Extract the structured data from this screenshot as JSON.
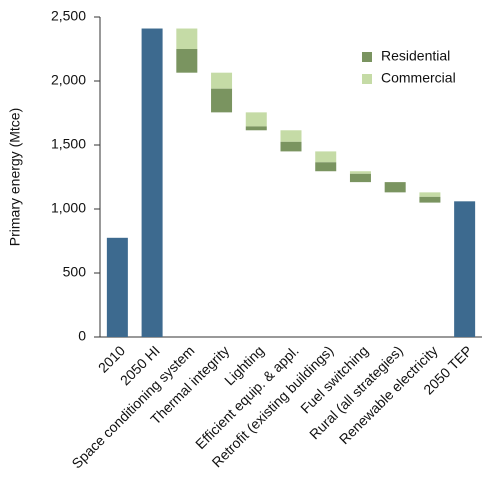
{
  "chart_data": {
    "type": "waterfall",
    "y_label": "Primary energy (Mtce)",
    "categories": [
      "2010",
      "2050 HI",
      "Space conditioning system",
      "Thermal integrity",
      "Lighting",
      "Efficient equip. & appl.",
      "Retrofit (existing buildings)",
      "Fuel switching",
      "Rural (all strategies)",
      "Renewable electricity",
      "2050 TEP"
    ],
    "totals": {
      "color": "#3d6a8f",
      "values": [
        775,
        2410,
        null,
        null,
        null,
        null,
        null,
        null,
        null,
        null,
        1060
      ]
    },
    "series": [
      {
        "name": "Residential",
        "color": "#7a9460",
        "values": [
          null,
          null,
          185,
          185,
          30,
          75,
          70,
          65,
          80,
          45,
          null
        ]
      },
      {
        "name": "Commercial",
        "color": "#c5dba6",
        "values": [
          null,
          null,
          160,
          125,
          110,
          90,
          85,
          20,
          null,
          35,
          null
        ]
      }
    ],
    "ylim": [
      0,
      2500
    ],
    "yticks": [
      0,
      500,
      {
        "value": 1000,
        "label": "1,000"
      },
      {
        "value": 1500,
        "label": "1,500"
      },
      {
        "value": 2000,
        "label": "2,000"
      },
      {
        "value": 2500,
        "label": "2,500"
      }
    ],
    "legend": "upper right"
  }
}
